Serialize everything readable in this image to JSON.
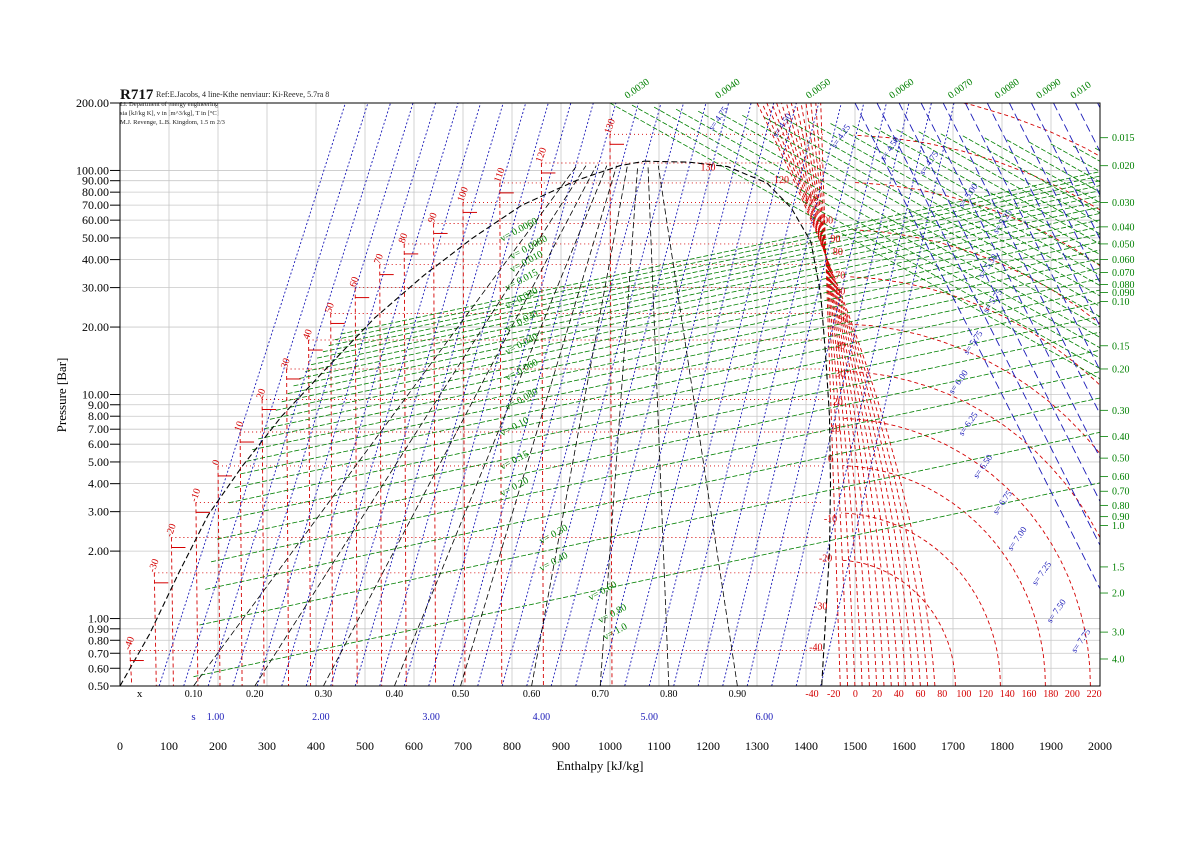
{
  "chart_data": {
    "type": "line",
    "title": "R717",
    "header_line": "Ref:E.Jacobs, 4 line-Kthe nenviaur: Ki-Reeve, 5.7ra 8",
    "header_sub": [
      "Li. Department of energy engineering",
      "sia [kJ/kg K], v in [m^3/kg], T in [°C]",
      "M.J. Revenge, L.B. Kingdom, 1.5 m 2/3"
    ],
    "xlabel": "Enthalpy [kJ/kg]",
    "ylabel": "Pressure [Bar]",
    "xlim": [
      0,
      2000
    ],
    "ylim": [
      0.5,
      200
    ],
    "x_ticks": [
      "0",
      "100",
      "200",
      "300",
      "400",
      "500",
      "600",
      "700",
      "800",
      "900",
      "1000",
      "1100",
      "1200",
      "1300",
      "1400",
      "1500",
      "1600",
      "1700",
      "1800",
      "1900",
      "2000"
    ],
    "y_ticks": [
      {
        "v": 200,
        "label": "200.00"
      },
      {
        "v": 100,
        "label": "100.00"
      },
      {
        "v": 90,
        "label": "90.00"
      },
      {
        "v": 80,
        "label": "80.00"
      },
      {
        "v": 70,
        "label": "70.00"
      },
      {
        "v": 60,
        "label": "60.00"
      },
      {
        "v": 50,
        "label": "50.00"
      },
      {
        "v": 40,
        "label": "40.00"
      },
      {
        "v": 30,
        "label": "30.00"
      },
      {
        "v": 20,
        "label": "20.00"
      },
      {
        "v": 10,
        "label": "10.00"
      },
      {
        "v": 9,
        "label": "9.00"
      },
      {
        "v": 8,
        "label": "8.00"
      },
      {
        "v": 7,
        "label": "7.00"
      },
      {
        "v": 6,
        "label": "6.00"
      },
      {
        "v": 5,
        "label": "5.00"
      },
      {
        "v": 4,
        "label": "4.00"
      },
      {
        "v": 3,
        "label": "3.00"
      },
      {
        "v": 2,
        "label": "2.00"
      },
      {
        "v": 1,
        "label": "1.00"
      },
      {
        "v": 0.9,
        "label": "0.90"
      },
      {
        "v": 0.8,
        "label": "0.80"
      },
      {
        "v": 0.7,
        "label": "0.70"
      },
      {
        "v": 0.6,
        "label": "0.60"
      },
      {
        "v": 0.5,
        "label": "0.50"
      }
    ],
    "quality_label": "x",
    "quality_ticks": [
      {
        "h": 150,
        "label": "0.10"
      },
      {
        "h": 275,
        "label": "0.20"
      },
      {
        "h": 415,
        "label": "0.30"
      },
      {
        "h": 560,
        "label": "0.40"
      },
      {
        "h": 695,
        "label": "0.50"
      },
      {
        "h": 840,
        "label": "0.60"
      },
      {
        "h": 980,
        "label": "0.70"
      },
      {
        "h": 1120,
        "label": "0.80"
      },
      {
        "h": 1260,
        "label": "0.90"
      }
    ],
    "entropy_label": "s",
    "entropy_ticks": [
      {
        "h": 195,
        "label": "1.00"
      },
      {
        "h": 410,
        "label": "2.00"
      },
      {
        "h": 635,
        "label": "3.00"
      },
      {
        "h": 860,
        "label": "4.00"
      },
      {
        "h": 1080,
        "label": "5.00"
      },
      {
        "h": 1315,
        "label": "6.00"
      }
    ],
    "temperature_axis_ticks": [
      "-40",
      "-20",
      "0",
      "20",
      "40",
      "60",
      "80",
      "100",
      "120",
      "140",
      "160",
      "180",
      "200",
      "220"
    ],
    "right_volume_ticks": [
      {
        "p": 140,
        "label": "0.015"
      },
      {
        "p": 105,
        "label": "0.020"
      },
      {
        "p": 72,
        "label": "0.030"
      },
      {
        "p": 56,
        "label": "0.040"
      },
      {
        "p": 47,
        "label": "0.050"
      },
      {
        "p": 40,
        "label": "0.060"
      },
      {
        "p": 35,
        "label": "0.070"
      },
      {
        "p": 31,
        "label": "0.080"
      },
      {
        "p": 28.5,
        "label": "0.090"
      },
      {
        "p": 26,
        "label": "0.10"
      },
      {
        "p": 16.5,
        "label": "0.15"
      },
      {
        "p": 13,
        "label": "0.20"
      },
      {
        "p": 8.5,
        "label": "0.30"
      },
      {
        "p": 6.5,
        "label": "0.40"
      },
      {
        "p": 5.2,
        "label": "0.50"
      },
      {
        "p": 4.3,
        "label": "0.60"
      },
      {
        "p": 3.7,
        "label": "0.70"
      },
      {
        "p": 3.2,
        "label": "0.80"
      },
      {
        "p": 2.85,
        "label": "0.90"
      },
      {
        "p": 2.6,
        "label": "1.0"
      },
      {
        "p": 1.7,
        "label": "1.5"
      },
      {
        "p": 1.3,
        "label": "2.0"
      },
      {
        "p": 0.87,
        "label": "3.0"
      },
      {
        "p": 0.66,
        "label": "4.0"
      }
    ],
    "top_volume_labels": [
      {
        "h": 1060,
        "label": "0.0030"
      },
      {
        "h": 1245,
        "label": "0.0040"
      },
      {
        "h": 1430,
        "label": "0.0050"
      },
      {
        "h": 1600,
        "label": "0.0060"
      },
      {
        "h": 1720,
        "label": "0.0070"
      },
      {
        "h": 1815,
        "label": "0.0080"
      },
      {
        "h": 1900,
        "label": "0.0090"
      },
      {
        "h": 1970,
        "label": "0.010"
      }
    ],
    "inner_volume_labels": [
      {
        "h": 780,
        "p": 48,
        "label": "v= 0.0060"
      },
      {
        "h": 800,
        "p": 40,
        "label": "v= 0.0080"
      },
      {
        "h": 800,
        "p": 35,
        "label": "v= 0.010"
      },
      {
        "h": 790,
        "p": 29,
        "label": "v= 0.015"
      },
      {
        "h": 790,
        "p": 24,
        "label": "v= 0.020"
      },
      {
        "h": 790,
        "p": 19,
        "label": "v= 0.030"
      },
      {
        "h": 790,
        "p": 15,
        "label": "v= 0.040"
      },
      {
        "h": 790,
        "p": 11.5,
        "label": "v= 0.060"
      },
      {
        "h": 790,
        "p": 8.5,
        "label": "v= 0.080"
      },
      {
        "h": 780,
        "p": 6.5,
        "label": "v= 0.10"
      },
      {
        "h": 780,
        "p": 4.6,
        "label": "v= 0.15"
      },
      {
        "h": 780,
        "p": 3.5,
        "label": "v= 0.20"
      },
      {
        "h": 860,
        "p": 2.15,
        "label": "v= 0.30"
      },
      {
        "h": 860,
        "p": 1.62,
        "label": "v= 0.40"
      },
      {
        "h": 960,
        "p": 1.2,
        "label": "v= 0.60"
      },
      {
        "h": 980,
        "p": 0.95,
        "label": "v= 0.80"
      },
      {
        "h": 990,
        "p": 0.8,
        "label": "v= 1.0"
      }
    ],
    "sat_temperature_labels": [
      {
        "h": 20,
        "p": 0.72,
        "label": "-40"
      },
      {
        "h": 70,
        "p": 1.6,
        "label": "-30"
      },
      {
        "h": 105,
        "p": 2.3,
        "label": "-20"
      },
      {
        "h": 155,
        "p": 3.3,
        "label": "-10"
      },
      {
        "h": 200,
        "p": 4.8,
        "label": "0"
      },
      {
        "h": 245,
        "p": 6.8,
        "label": "10"
      },
      {
        "h": 290,
        "p": 9.5,
        "label": "20"
      },
      {
        "h": 340,
        "p": 13,
        "label": "30"
      },
      {
        "h": 385,
        "p": 17.5,
        "label": "40"
      },
      {
        "h": 430,
        "p": 23,
        "label": "50"
      },
      {
        "h": 480,
        "p": 30,
        "label": "60"
      },
      {
        "h": 530,
        "p": 38,
        "label": "70"
      },
      {
        "h": 580,
        "p": 47,
        "label": "80"
      },
      {
        "h": 640,
        "p": 58,
        "label": "90"
      },
      {
        "h": 700,
        "p": 72,
        "label": "100"
      },
      {
        "h": 775,
        "p": 88,
        "label": "110"
      },
      {
        "h": 860,
        "p": 108,
        "label": "120"
      },
      {
        "h": 1000,
        "p": 145,
        "label": "130"
      }
    ],
    "vapor_temperature_labels": [
      {
        "h": 1200,
        "p": 100,
        "label": "130"
      },
      {
        "h": 1350,
        "p": 88,
        "label": "120"
      },
      {
        "h": 1410,
        "p": 73,
        "label": "110"
      },
      {
        "h": 1440,
        "p": 58,
        "label": "100"
      },
      {
        "h": 1460,
        "p": 48,
        "label": "90"
      },
      {
        "h": 1465,
        "p": 42,
        "label": "80"
      },
      {
        "h": 1470,
        "p": 33,
        "label": "70"
      },
      {
        "h": 1470,
        "p": 28,
        "label": "60"
      },
      {
        "h": 1475,
        "p": 21,
        "label": "50"
      },
      {
        "h": 1470,
        "p": 16,
        "label": "40"
      },
      {
        "h": 1470,
        "p": 12,
        "label": "30"
      },
      {
        "h": 1465,
        "p": 9,
        "label": "20"
      },
      {
        "h": 1460,
        "p": 6.8,
        "label": "10"
      },
      {
        "h": 1450,
        "p": 5,
        "label": "0"
      },
      {
        "h": 1450,
        "p": 2.7,
        "label": "-10"
      },
      {
        "h": 1440,
        "p": 1.8,
        "label": "-20"
      },
      {
        "h": 1430,
        "p": 1.1,
        "label": "-30"
      },
      {
        "h": 1420,
        "p": 0.72,
        "label": "-40"
      }
    ],
    "entropy_line_labels": [
      {
        "h": 1210,
        "p": 150,
        "label": "s= 4.75"
      },
      {
        "h": 1340,
        "p": 140,
        "label": "s= 4.50"
      },
      {
        "h": 1460,
        "p": 125,
        "label": "s= 4.25"
      },
      {
        "h": 1560,
        "p": 110,
        "label": "s= 4.50"
      },
      {
        "h": 1640,
        "p": 95,
        "label": "s= 4.75"
      },
      {
        "h": 1720,
        "p": 68,
        "label": "s= 5.00"
      },
      {
        "h": 1790,
        "p": 52,
        "label": "s= 5.25"
      },
      {
        "h": 1760,
        "p": 33,
        "label": "s= 5.50"
      },
      {
        "h": 1770,
        "p": 23,
        "label": "s= 5.75"
      },
      {
        "h": 1730,
        "p": 15,
        "label": "s= 5.75"
      },
      {
        "h": 1700,
        "p": 10,
        "label": "s= 6.00"
      },
      {
        "h": 1720,
        "p": 6.5,
        "label": "s= 6.25"
      },
      {
        "h": 1750,
        "p": 4.2,
        "label": "s= 6.50"
      },
      {
        "h": 1790,
        "p": 2.9,
        "label": "s= 6.75"
      },
      {
        "h": 1820,
        "p": 2.0,
        "label": "s= 7.00"
      },
      {
        "h": 1870,
        "p": 1.4,
        "label": "s= 7.25"
      },
      {
        "h": 1900,
        "p": 0.95,
        "label": "s= 7.50"
      },
      {
        "h": 1950,
        "p": 0.7,
        "label": "s= 7.75"
      }
    ],
    "grid": true,
    "colors": {
      "axis": "#000000",
      "grid": "#c8c8c8",
      "temperature": "#d40000",
      "volume": "#008000",
      "entropy": "#1a1ab8",
      "quality": "#000000"
    }
  }
}
